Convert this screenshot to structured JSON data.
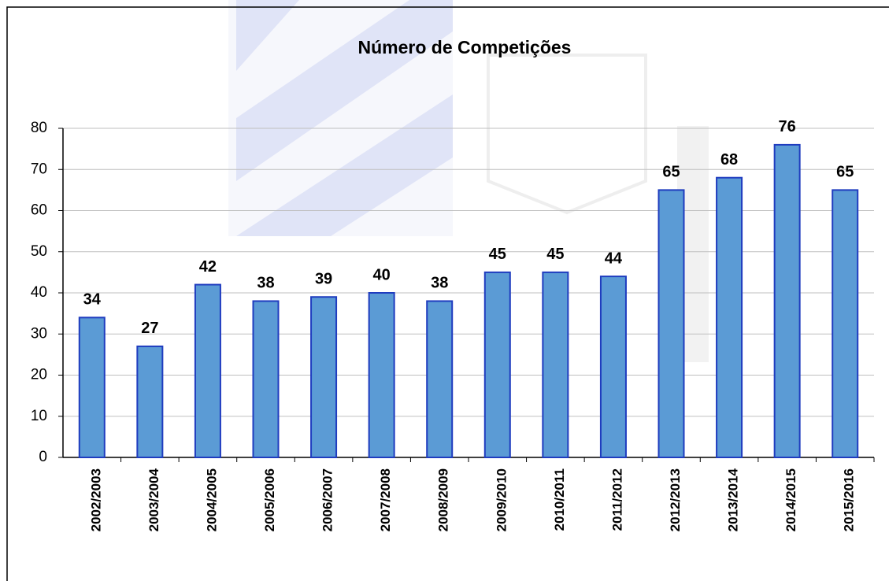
{
  "chart_data": {
    "type": "bar",
    "title": "Número de Competições",
    "categories": [
      "2002/2003",
      "2003/2004",
      "2004/2005",
      "2005/2006",
      "2006/2007",
      "2007/2008",
      "2008/2009",
      "2009/2010",
      "2010/2011",
      "2011/2012",
      "2012/2013",
      "2013/2014",
      "2014/2015",
      "2015/2016"
    ],
    "values": [
      34,
      27,
      42,
      38,
      39,
      40,
      38,
      45,
      45,
      44,
      65,
      68,
      76,
      65
    ],
    "color": "#5b9bd5",
    "ylim": [
      0,
      80
    ],
    "yticks": [
      0,
      10,
      20,
      30,
      40,
      50,
      60,
      70,
      80
    ],
    "grid": true
  }
}
